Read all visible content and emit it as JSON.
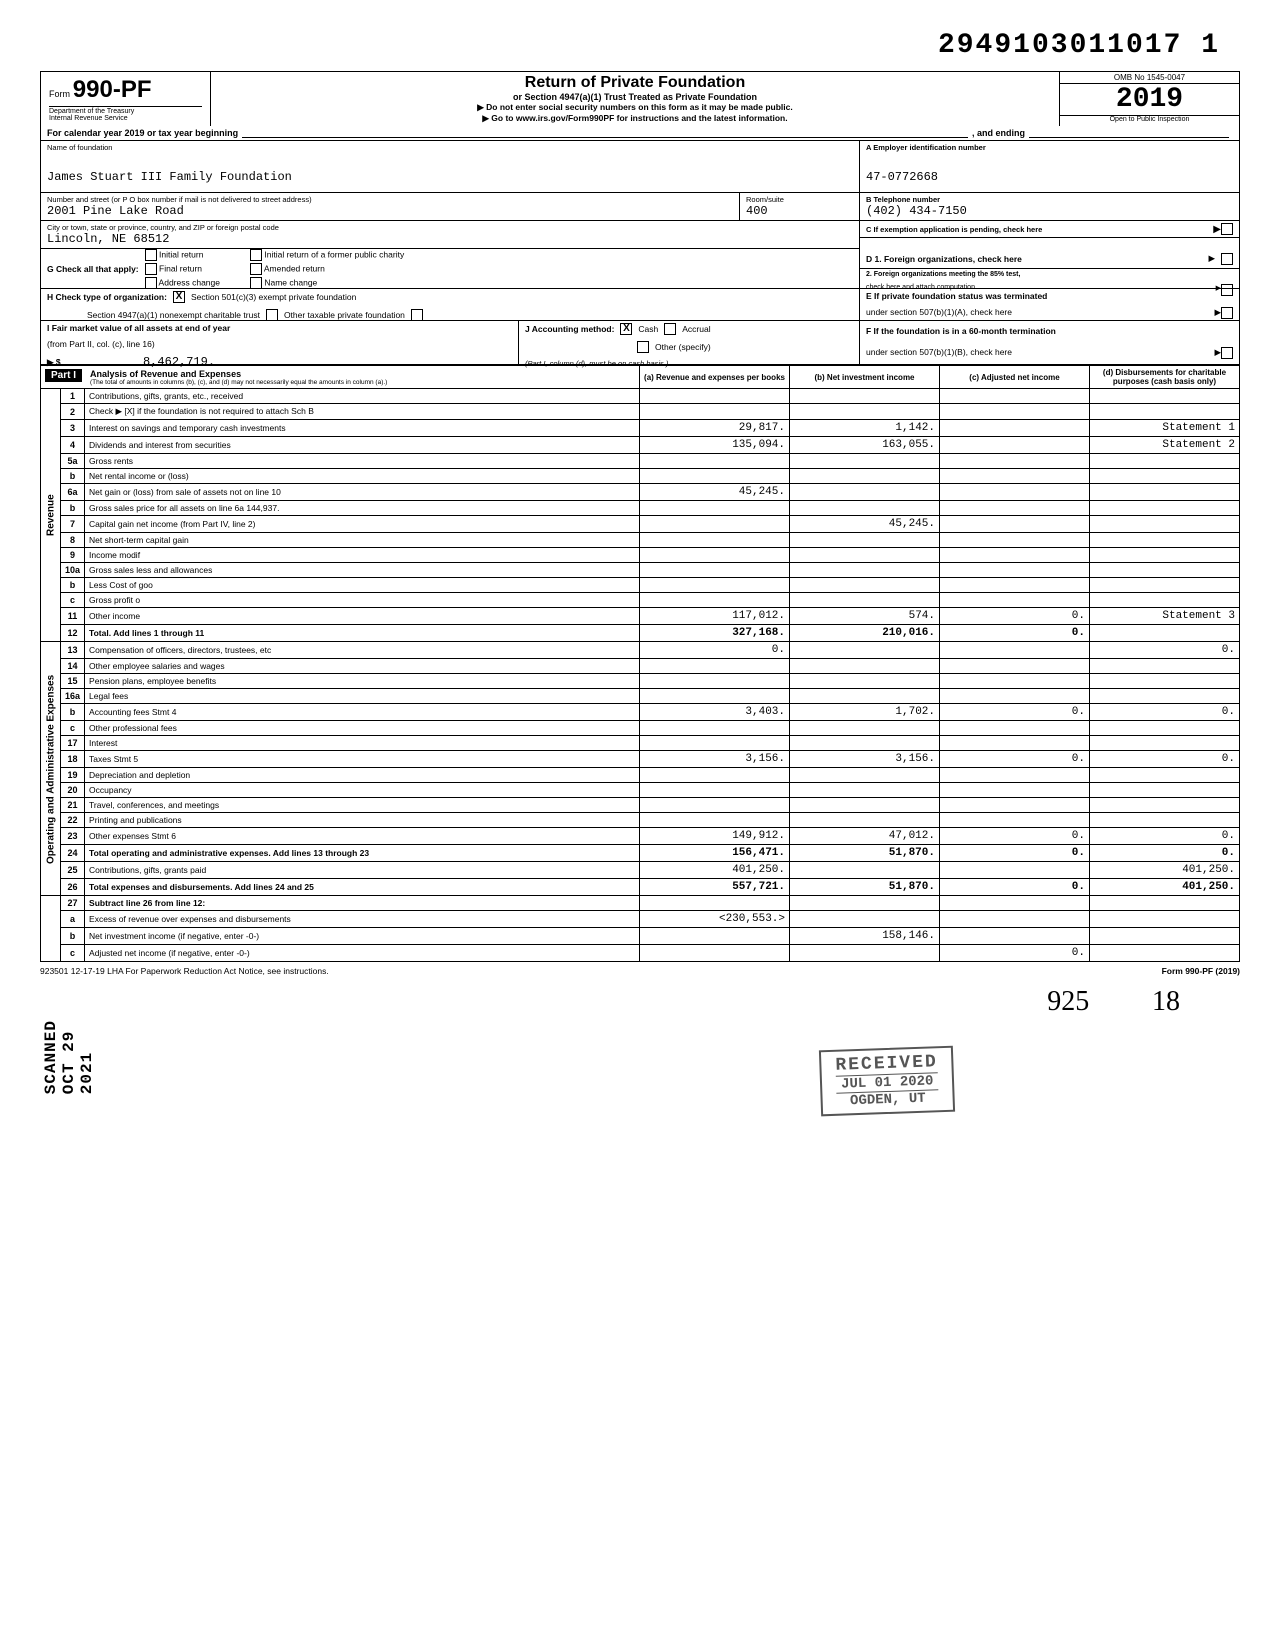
{
  "doc_number": "2949103011017 1",
  "form": {
    "prefix": "Form",
    "number": "990-PF",
    "dept1": "Department of the Treasury",
    "dept2": "Internal Revenue Service"
  },
  "title": {
    "main": "Return of Private Foundation",
    "sub": "or Section 4947(a)(1) Trust Treated as Private Foundation",
    "note1": "▶ Do not enter social security numbers on this form as it may be made public.",
    "note2": "▶ Go to www.irs.gov/Form990PF for instructions and the latest information."
  },
  "yearbox": {
    "omb": "OMB No  1545-0047",
    "year": "2019",
    "inspect": "Open to Public Inspection"
  },
  "cal_year": {
    "text1": "For calendar year 2019 or tax year beginning",
    "text2": ", and ending"
  },
  "name_block": {
    "label_name": "Name of foundation",
    "name": "James Stuart III Family Foundation",
    "label_street": "Number and street (or P O  box number if mail is not delivered to street address)",
    "street": "2001 Pine Lake Road",
    "label_room": "Room/suite",
    "room": "400",
    "label_city": "City or town, state or province, country, and ZIP or foreign postal code",
    "city": "Lincoln, NE  68512"
  },
  "emp_block": {
    "label_a": "A  Employer identification number",
    "ein": "47-0772668",
    "label_b": "B  Telephone number",
    "phone": "(402) 434-7150",
    "label_c": "C  If exemption application is pending, check here"
  },
  "g": {
    "label": "G  Check all that apply:",
    "opts": [
      "Initial return",
      "Final return",
      "Address change",
      "Initial return of a former public charity",
      "Amended return",
      "Name change"
    ]
  },
  "h": {
    "label": "H  Check type of organization:",
    "o1": "Section 501(c)(3) exempt private foundation",
    "o2": "Section 4947(a)(1) nonexempt charitable trust",
    "o3": "Other taxable private foundation"
  },
  "i": {
    "label": "I  Fair market value of all assets at end of year",
    "sub": "(from Part II, col. (c), line 16)",
    "arrow": "▶ $",
    "val": "8,462,719."
  },
  "j": {
    "label": "J  Accounting method:",
    "o1": "Cash",
    "o2": "Accrual",
    "o3": "Other (specify)",
    "note": "(Part I, column (d), must be on cash basis.)"
  },
  "d": {
    "l1": "D  1. Foreign organizations, check here",
    "l2a": "2. Foreign organizations meeting the 85% test,",
    "l2b": "check here and attach computation"
  },
  "e": {
    "l1": "E  If private foundation status was terminated",
    "l2": "under section 507(b)(1)(A), check here"
  },
  "f": {
    "l1": "F  If the foundation is in a 60-month termination",
    "l2": "under section 507(b)(1)(B), check here"
  },
  "part1_header": {
    "label": "Part I",
    "title": "Analysis of Revenue and Expenses",
    "sub": "(The total of amounts in columns (b), (c), and (d) may not necessarily equal the amounts in column (a).)",
    "col_a": "(a) Revenue and expenses per books",
    "col_b": "(b) Net investment income",
    "col_c": "(c) Adjusted net income",
    "col_d": "(d) Disbursements for charitable purposes (cash basis only)"
  },
  "revenue_rows": [
    {
      "n": "1",
      "desc": "Contributions, gifts, grants, etc., received",
      "a": "",
      "b": "",
      "c": "",
      "d": ""
    },
    {
      "n": "2",
      "desc": "Check ▶ [X] if the foundation is not required to attach Sch  B",
      "a": "",
      "b": "",
      "c": "",
      "d": ""
    },
    {
      "n": "3",
      "desc": "Interest on savings and temporary cash investments",
      "a": "29,817.",
      "b": "1,142.",
      "c": "",
      "d": "Statement 1"
    },
    {
      "n": "4",
      "desc": "Dividends and interest from securities",
      "a": "135,094.",
      "b": "163,055.",
      "c": "",
      "d": "Statement 2"
    },
    {
      "n": "5a",
      "desc": "Gross rents",
      "a": "",
      "b": "",
      "c": "",
      "d": ""
    },
    {
      "n": "b",
      "desc": "Net rental income or (loss)",
      "a": "",
      "b": "",
      "c": "",
      "d": ""
    },
    {
      "n": "6a",
      "desc": "Net gain or (loss) from sale of assets not on line 10",
      "a": "45,245.",
      "b": "",
      "c": "",
      "d": ""
    },
    {
      "n": "b",
      "desc": "Gross sales price for all assets on line 6a         144,937.",
      "a": "",
      "b": "",
      "c": "",
      "d": ""
    },
    {
      "n": "7",
      "desc": "Capital gain net income (from Part IV, line 2)",
      "a": "",
      "b": "45,245.",
      "c": "",
      "d": ""
    },
    {
      "n": "8",
      "desc": "Net short-term capital gain",
      "a": "",
      "b": "",
      "c": "",
      "d": ""
    },
    {
      "n": "9",
      "desc": "Income modif",
      "a": "",
      "b": "",
      "c": "",
      "d": ""
    },
    {
      "n": "10a",
      "desc": "Gross sales less and allowances",
      "a": "",
      "b": "",
      "c": "",
      "d": ""
    },
    {
      "n": "b",
      "desc": "Less  Cost of goo",
      "a": "",
      "b": "",
      "c": "",
      "d": ""
    },
    {
      "n": "c",
      "desc": "Gross profit o",
      "a": "",
      "b": "",
      "c": "",
      "d": ""
    },
    {
      "n": "11",
      "desc": "Other income",
      "a": "117,012.",
      "b": "574.",
      "c": "0.",
      "d": "Statement 3"
    },
    {
      "n": "12",
      "desc": "Total. Add lines 1 through 11",
      "a": "327,168.",
      "b": "210,016.",
      "c": "0.",
      "d": "",
      "total": true
    }
  ],
  "expense_rows": [
    {
      "n": "13",
      "desc": "Compensation of officers, directors, trustees, etc",
      "a": "0.",
      "b": "",
      "c": "",
      "d": "0."
    },
    {
      "n": "14",
      "desc": "Other employee salaries and wages",
      "a": "",
      "b": "",
      "c": "",
      "d": ""
    },
    {
      "n": "15",
      "desc": "Pension plans, employee benefits",
      "a": "",
      "b": "",
      "c": "",
      "d": ""
    },
    {
      "n": "16a",
      "desc": "Legal fees",
      "a": "",
      "b": "",
      "c": "",
      "d": ""
    },
    {
      "n": "b",
      "desc": "Accounting fees                        Stmt 4",
      "a": "3,403.",
      "b": "1,702.",
      "c": "0.",
      "d": "0."
    },
    {
      "n": "c",
      "desc": "Other professional fees",
      "a": "",
      "b": "",
      "c": "",
      "d": ""
    },
    {
      "n": "17",
      "desc": "Interest",
      "a": "",
      "b": "",
      "c": "",
      "d": ""
    },
    {
      "n": "18",
      "desc": "Taxes                                  Stmt 5",
      "a": "3,156.",
      "b": "3,156.",
      "c": "0.",
      "d": "0."
    },
    {
      "n": "19",
      "desc": "Depreciation and depletion",
      "a": "",
      "b": "",
      "c": "",
      "d": ""
    },
    {
      "n": "20",
      "desc": "Occupancy",
      "a": "",
      "b": "",
      "c": "",
      "d": ""
    },
    {
      "n": "21",
      "desc": "Travel, conferences, and meetings",
      "a": "",
      "b": "",
      "c": "",
      "d": ""
    },
    {
      "n": "22",
      "desc": "Printing and publications",
      "a": "",
      "b": "",
      "c": "",
      "d": ""
    },
    {
      "n": "23",
      "desc": "Other expenses                         Stmt 6",
      "a": "149,912.",
      "b": "47,012.",
      "c": "0.",
      "d": "0."
    },
    {
      "n": "24",
      "desc": "Total operating and administrative expenses. Add lines 13 through 23",
      "a": "156,471.",
      "b": "51,870.",
      "c": "0.",
      "d": "0.",
      "total": true
    },
    {
      "n": "25",
      "desc": "Contributions, gifts, grants paid",
      "a": "401,250.",
      "b": "",
      "c": "",
      "d": "401,250."
    },
    {
      "n": "26",
      "desc": "Total expenses and disbursements. Add lines 24 and 25",
      "a": "557,721.",
      "b": "51,870.",
      "c": "0.",
      "d": "401,250.",
      "total": true
    }
  ],
  "line27": [
    {
      "n": "27",
      "desc": "Subtract line 26 from line 12:",
      "a": "",
      "b": "",
      "c": "",
      "d": ""
    },
    {
      "n": "a",
      "desc": "Excess of revenue over expenses and disbursements",
      "a": "<230,553.>",
      "b": "",
      "c": "",
      "d": ""
    },
    {
      "n": "b",
      "desc": "Net investment income (if negative, enter -0-)",
      "a": "",
      "b": "158,146.",
      "c": "",
      "d": ""
    },
    {
      "n": "c",
      "desc": "Adjusted net income (if negative, enter -0-)",
      "a": "",
      "b": "",
      "c": "0.",
      "d": ""
    }
  ],
  "footer": {
    "left": "923501  12-17-19   LHA   For Paperwork Reduction Act Notice, see instructions.",
    "right": "Form 990-PF (2019)"
  },
  "side_stamp": "SCANNED OCT 29 2021",
  "received": {
    "r1": "RECEIVED",
    "r2": "JUL 01 2020",
    "r3": "OGDEN, UT"
  },
  "vert_labels": {
    "rev": "Revenue",
    "exp": "Operating and Administrative Expenses"
  },
  "hand": {
    "v1": "925",
    "v2": "18"
  },
  "x_mark": "X",
  "arrow": "▶"
}
